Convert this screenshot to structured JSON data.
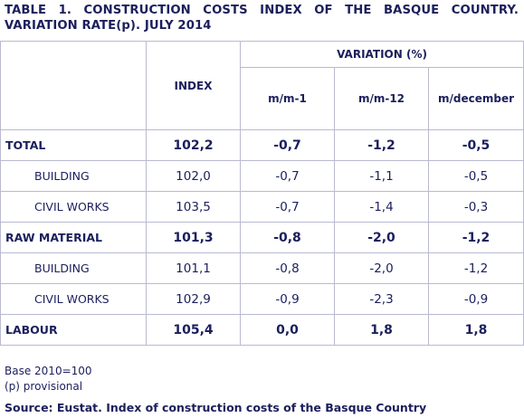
{
  "title": "TABLE 1. CONSTRUCTION COSTS INDEX OF THE BASQUE COUNTRY. VARIATION RATE(p). JULY 2014",
  "headers": {
    "index": "INDEX",
    "variation": "VARIATION (%)",
    "mm1": "m/m-1",
    "mm12": "m/m-12",
    "mdec": "m/december"
  },
  "rows": [
    {
      "label": "TOTAL",
      "index": "102,2",
      "mm1": "-0,7",
      "mm12": "-1,2",
      "mdec": "-0,5"
    },
    {
      "label": "BUILDING",
      "index": "102,0",
      "mm1": "-0,7",
      "mm12": "-1,1",
      "mdec": "-0,5"
    },
    {
      "label": "CIVIL WORKS",
      "index": "103,5",
      "mm1": "-0,7",
      "mm12": "-1,4",
      "mdec": "-0,3"
    },
    {
      "label": "RAW MATERIAL",
      "index": "101,3",
      "mm1": "-0,8",
      "mm12": "-2,0",
      "mdec": "-1,2"
    },
    {
      "label": "BUILDING",
      "index": "101,1",
      "mm1": "-0,8",
      "mm12": "-2,0",
      "mdec": "-1,2"
    },
    {
      "label": "CIVIL WORKS",
      "index": "102,9",
      "mm1": "-0,9",
      "mm12": "-2,3",
      "mdec": "-0,9"
    },
    {
      "label": "LABOUR",
      "index": "105,4",
      "mm1": "0,0",
      "mm12": "1,8",
      "mdec": "1,8"
    }
  ],
  "notes": {
    "base": "Base 2010=100",
    "provisional": "(p) provisional",
    "source": "Source: Eustat. Index of construction costs of the Basque Country"
  }
}
